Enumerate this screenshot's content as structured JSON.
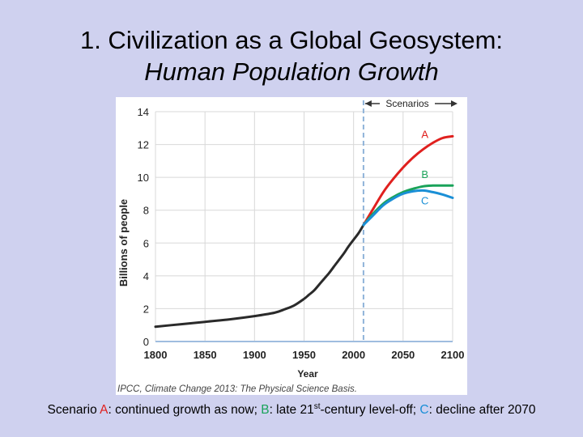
{
  "title": {
    "line1": "1. Civilization as a Global Geosystem:",
    "line2": "Human Population Growth"
  },
  "source": "IPCC, Climate Change 2013: The Physical Science Basis.",
  "caption": {
    "prefix": "Scenario ",
    "a": "A",
    "a_text": ": continued growth as now; ",
    "b": "B",
    "b_text": ": late 21",
    "sup": "st",
    "b_text2": "-century level-off; ",
    "c": "C",
    "c_text": ": decline after 2070"
  },
  "colors": {
    "historical": "#2a2a2a",
    "A": "#e0201e",
    "B": "#1aa35a",
    "C": "#1a8fd6",
    "divider": "#8fb3d9",
    "grid": "#d8d8d8"
  },
  "chart_data": {
    "type": "line",
    "xlabel": "Year",
    "ylabel": "Billions of people",
    "xlim": [
      1800,
      2100
    ],
    "ylim": [
      0,
      14
    ],
    "xticks": [
      1800,
      1850,
      1900,
      1950,
      2000,
      2050,
      2100
    ],
    "yticks": [
      0,
      2,
      4,
      6,
      8,
      10,
      12,
      14
    ],
    "grid": true,
    "divider_x": 2010,
    "divider_label": "Scenarios",
    "series": [
      {
        "key": "historical",
        "x": [
          1800,
          1825,
          1850,
          1875,
          1900,
          1920,
          1930,
          1940,
          1950,
          1955,
          1960,
          1965,
          1970,
          1975,
          1980,
          1985,
          1990,
          1995,
          2000,
          2005,
          2010
        ],
        "y": [
          0.9,
          1.05,
          1.2,
          1.35,
          1.55,
          1.75,
          1.95,
          2.2,
          2.6,
          2.85,
          3.1,
          3.45,
          3.8,
          4.15,
          4.55,
          4.95,
          5.35,
          5.8,
          6.2,
          6.6,
          7.1
        ]
      },
      {
        "key": "A",
        "name": "A",
        "x": [
          2010,
          2020,
          2030,
          2040,
          2050,
          2060,
          2070,
          2080,
          2090,
          2100
        ],
        "y": [
          7.1,
          8.1,
          9.1,
          9.9,
          10.6,
          11.2,
          11.7,
          12.1,
          12.4,
          12.5
        ]
      },
      {
        "key": "B",
        "name": "B",
        "x": [
          2010,
          2020,
          2030,
          2040,
          2050,
          2060,
          2070,
          2080,
          2090,
          2100
        ],
        "y": [
          7.1,
          7.8,
          8.4,
          8.8,
          9.1,
          9.3,
          9.45,
          9.5,
          9.5,
          9.5
        ]
      },
      {
        "key": "C",
        "name": "C",
        "x": [
          2010,
          2020,
          2030,
          2040,
          2050,
          2060,
          2070,
          2080,
          2090,
          2100
        ],
        "y": [
          7.1,
          7.7,
          8.3,
          8.7,
          9.0,
          9.15,
          9.2,
          9.1,
          8.95,
          8.75
        ]
      }
    ]
  }
}
